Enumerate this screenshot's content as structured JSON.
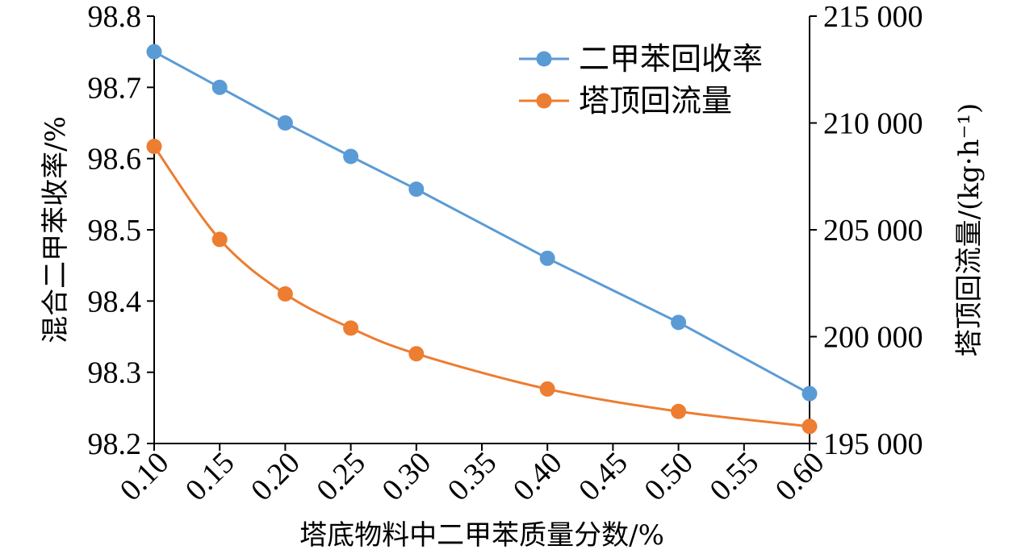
{
  "chart_data": {
    "type": "line",
    "x": [
      0.1,
      0.15,
      0.2,
      0.25,
      0.3,
      0.4,
      0.5,
      0.6
    ],
    "xticks": [
      "0.10",
      "0.15",
      "0.20",
      "0.25",
      "0.30",
      "0.35",
      "0.40",
      "0.45",
      "0.50",
      "0.55",
      "0.60"
    ],
    "xlim": [
      0.1,
      0.6
    ],
    "xlabel": "塔底物料中二甲苯质量分数/%",
    "ylabel_left": "混合二甲苯收率/%",
    "ylabel_right": "塔顶回流量/(kg·h⁻¹)",
    "ylim_left": [
      98.2,
      98.8
    ],
    "yticks_left": [
      "98.2",
      "98.3",
      "98.4",
      "98.5",
      "98.6",
      "98.7",
      "98.8"
    ],
    "ylim_right": [
      195000,
      215000
    ],
    "yticks_right": [
      "195 000",
      "200 000",
      "205 000",
      "210 000",
      "215 000"
    ],
    "legend_position": "top-right",
    "grid": false,
    "series": [
      {
        "name": "二甲苯回收率",
        "axis": "left",
        "color": "#5b9bd5",
        "smooth": false,
        "values": [
          98.75,
          98.7,
          98.65,
          98.603,
          98.557,
          98.46,
          98.37,
          98.27
        ]
      },
      {
        "name": "塔顶回流量",
        "axis": "right",
        "color": "#ed7d31",
        "smooth": true,
        "values": [
          208900,
          204550,
          202000,
          200400,
          199200,
          197550,
          196500,
          195800
        ]
      }
    ]
  }
}
